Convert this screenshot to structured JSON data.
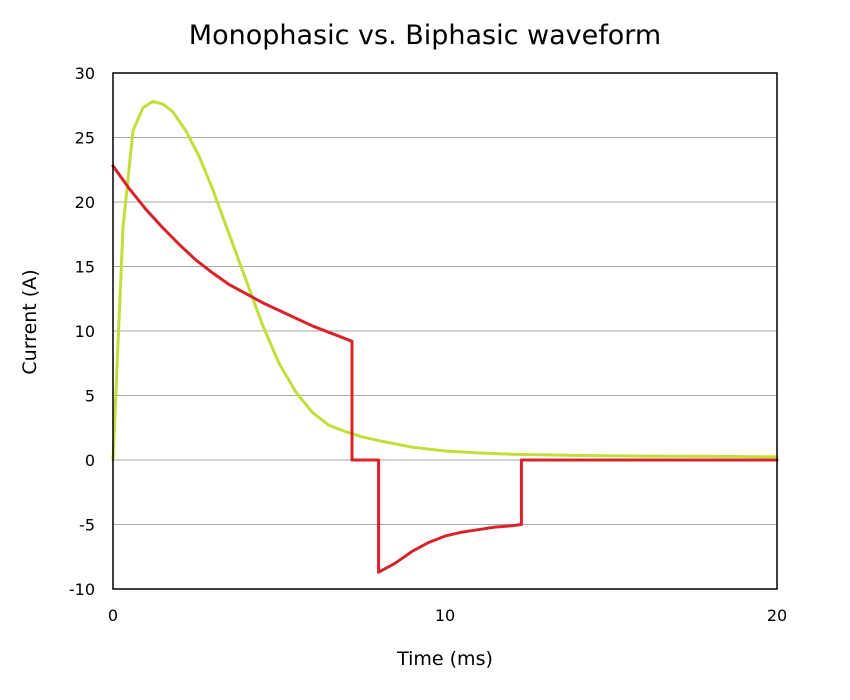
{
  "chart_data": {
    "type": "line",
    "title": "Monophasic vs. Biphasic waveform",
    "xlabel": "Time (ms)",
    "ylabel": "Current (A)",
    "xlim": [
      0,
      20
    ],
    "ylim": [
      -10,
      30
    ],
    "xticks": [
      0,
      10,
      20
    ],
    "yticks": [
      30,
      25,
      20,
      15,
      10,
      5,
      0,
      -5,
      -10
    ],
    "grid": "horizontal",
    "legend": "none",
    "series": [
      {
        "color": "#bfe03a",
        "x": [
          0,
          0.3,
          0.6,
          0.9,
          1.2,
          1.5,
          1.8,
          2.2,
          2.6,
          3.0,
          3.5,
          4.0,
          4.5,
          5.0,
          5.5,
          6.0,
          6.5,
          7.0,
          7.5,
          8.0,
          9.0,
          10.0,
          11.0,
          12.0,
          14.0,
          16.0,
          18.0,
          20.0
        ],
        "y": [
          0,
          18,
          25.5,
          27.3,
          27.8,
          27.6,
          27.0,
          25.5,
          23.5,
          21.0,
          17.5,
          14.0,
          10.5,
          7.5,
          5.3,
          3.7,
          2.7,
          2.2,
          1.8,
          1.5,
          1.0,
          0.7,
          0.55,
          0.45,
          0.35,
          0.3,
          0.28,
          0.25
        ]
      },
      {
        "color": "#d8232a",
        "x": [
          0,
          0.5,
          1.0,
          1.5,
          2.0,
          2.5,
          3.0,
          3.5,
          4.0,
          4.5,
          5.0,
          5.5,
          6.0,
          6.5,
          7.0,
          7.2,
          7.2,
          8.0,
          8.0,
          8.5,
          9.0,
          9.5,
          10.0,
          10.5,
          11.0,
          11.5,
          12.0,
          12.3,
          12.3,
          14.0,
          16.0,
          18.0,
          20.0
        ],
        "y": [
          22.8,
          21.0,
          19.4,
          18.0,
          16.7,
          15.5,
          14.5,
          13.6,
          12.9,
          12.2,
          11.6,
          11.0,
          10.4,
          9.9,
          9.4,
          9.2,
          0,
          0,
          -8.7,
          -8.0,
          -7.1,
          -6.4,
          -5.9,
          -5.6,
          -5.4,
          -5.2,
          -5.1,
          -5.0,
          0,
          0,
          0,
          0,
          0
        ]
      }
    ]
  }
}
